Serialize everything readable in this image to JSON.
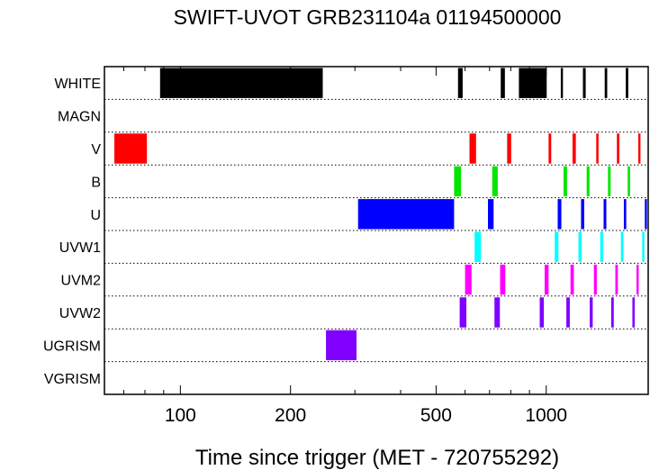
{
  "chart_data": {
    "type": "timeline",
    "title": "SWIFT-UVOT GRB231104a 01194500000",
    "xlabel": "Time since trigger (MET - 720755292)",
    "xscale": "log",
    "xlim": [
      62,
      1900
    ],
    "xticks": [
      100,
      200,
      500,
      1000
    ],
    "xtick_labels": [
      "100",
      "200",
      "500",
      "1000"
    ],
    "grid_rows": "dotted",
    "filters": [
      "WHITE",
      "MAGN",
      "V",
      "B",
      "U",
      "UVW1",
      "UVM2",
      "UVW2",
      "UGRISM",
      "VGRISM"
    ],
    "series": [
      {
        "name": "WHITE",
        "color": "#000000",
        "intervals": [
          [
            88,
            245
          ],
          [
            574,
            591
          ],
          [
            751,
            771
          ],
          [
            842,
            1003
          ],
          [
            1096,
            1111
          ],
          [
            1260,
            1282
          ],
          [
            1445,
            1468
          ],
          [
            1650,
            1676
          ]
        ]
      },
      {
        "name": "MAGN",
        "color": "#000000",
        "intervals": []
      },
      {
        "name": "V",
        "color": "#ff0000",
        "intervals": [
          [
            66,
            81
          ],
          [
            617,
            643
          ],
          [
            782,
            802
          ],
          [
            1015,
            1032
          ],
          [
            1180,
            1205
          ],
          [
            1370,
            1390
          ],
          [
            1560,
            1585
          ],
          [
            1785,
            1810
          ]
        ]
      },
      {
        "name": "B",
        "color": "#00e600",
        "intervals": [
          [
            560,
            585
          ],
          [
            712,
            737
          ],
          [
            1115,
            1140
          ],
          [
            1290,
            1313
          ],
          [
            1475,
            1500
          ],
          [
            1670,
            1695
          ]
        ]
      },
      {
        "name": "U",
        "color": "#0000ff",
        "intervals": [
          [
            306,
            560
          ],
          [
            693,
            718
          ],
          [
            1075,
            1100
          ],
          [
            1245,
            1270
          ],
          [
            1435,
            1460
          ],
          [
            1630,
            1655
          ],
          [
            1860,
            1885
          ]
        ]
      },
      {
        "name": "UVW1",
        "color": "#00ffff",
        "intervals": [
          [
            637,
            663
          ],
          [
            1055,
            1080
          ],
          [
            1225,
            1250
          ],
          [
            1405,
            1430
          ],
          [
            1600,
            1625
          ],
          [
            1830,
            1855
          ]
        ]
      },
      {
        "name": "UVM2",
        "color": "#ff00ff",
        "intervals": [
          [
            600,
            625
          ],
          [
            748,
            773
          ],
          [
            990,
            1015
          ],
          [
            1165,
            1190
          ],
          [
            1350,
            1375
          ],
          [
            1545,
            1570
          ],
          [
            1765,
            1790
          ]
        ]
      },
      {
        "name": "UVW2",
        "color": "#8000ff",
        "intervals": [
          [
            580,
            605
          ],
          [
            722,
            747
          ],
          [
            960,
            985
          ],
          [
            1135,
            1160
          ],
          [
            1315,
            1340
          ],
          [
            1505,
            1530
          ],
          [
            1720,
            1745
          ]
        ]
      },
      {
        "name": "UGRISM",
        "color": "#8000ff",
        "intervals": [
          [
            250,
            303
          ]
        ]
      },
      {
        "name": "VGRISM",
        "color": "#8000ff",
        "intervals": []
      }
    ]
  }
}
